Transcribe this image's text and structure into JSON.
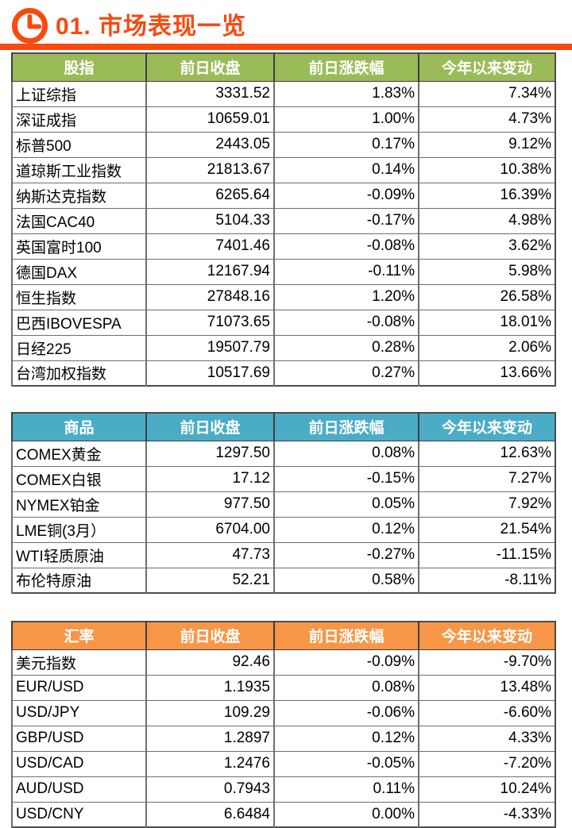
{
  "page": {
    "title": "01. 市场表现一览"
  },
  "icons": {
    "title_icon": "clock-icon"
  },
  "colors": {
    "accent_orange": "#F8490E",
    "header_green": "#9BBB59",
    "header_teal": "#4BACC6",
    "header_orange": "#F79646",
    "header_text": "#FFFFFF",
    "body_text": "#000000"
  },
  "tables": [
    {
      "id": "stock-indices",
      "header_color": "#9BBB59",
      "columns": [
        "股指",
        "前日收盘",
        "前日涨跌幅",
        "今年以来变动"
      ],
      "rows": [
        [
          "上证综指",
          "3331.52",
          "1.83%",
          "7.34%"
        ],
        [
          "深证成指",
          "10659.01",
          "1.00%",
          "4.73%"
        ],
        [
          "标普500",
          "2443.05",
          "0.17%",
          "9.12%"
        ],
        [
          "道琼斯工业指数",
          "21813.67",
          "0.14%",
          "10.38%"
        ],
        [
          "纳斯达克指数",
          "6265.64",
          "-0.09%",
          "16.39%"
        ],
        [
          "法国CAC40",
          "5104.33",
          "-0.17%",
          "4.98%"
        ],
        [
          "英国富时100",
          "7401.46",
          "-0.08%",
          "3.62%"
        ],
        [
          "德国DAX",
          "12167.94",
          "-0.11%",
          "5.98%"
        ],
        [
          "恒生指数",
          "27848.16",
          "1.20%",
          "26.58%"
        ],
        [
          "巴西IBOVESPA",
          "71073.65",
          "-0.08%",
          "18.01%"
        ],
        [
          "日经225",
          "19507.79",
          "0.28%",
          "2.06%"
        ],
        [
          "台湾加权指数",
          "10517.69",
          "0.27%",
          "13.66%"
        ]
      ]
    },
    {
      "id": "commodities",
      "header_color": "#4BACC6",
      "columns": [
        "商品",
        "前日收盘",
        "前日涨跌幅",
        "今年以来变动"
      ],
      "rows": [
        [
          "COMEX黄金",
          "1297.50",
          "0.08%",
          "12.63%"
        ],
        [
          "COMEX白银",
          "17.12",
          "-0.15%",
          "7.27%"
        ],
        [
          "NYMEX铂金",
          "977.50",
          "0.05%",
          "7.92%"
        ],
        [
          "LME铜(3月）",
          "6704.00",
          "0.12%",
          "21.54%"
        ],
        [
          "WTI轻质原油",
          "47.73",
          "-0.27%",
          "-11.15%"
        ],
        [
          "布伦特原油",
          "52.21",
          "0.58%",
          "-8.11%"
        ]
      ]
    },
    {
      "id": "fx-rates",
      "header_color": "#F79646",
      "columns": [
        "汇率",
        "前日收盘",
        "前日涨跌幅",
        "今年以来变动"
      ],
      "rows": [
        [
          "美元指数",
          "92.46",
          "-0.09%",
          "-9.70%"
        ],
        [
          "EUR/USD",
          "1.1935",
          "0.08%",
          "13.48%"
        ],
        [
          "USD/JPY",
          "109.29",
          "-0.06%",
          "-6.60%"
        ],
        [
          "GBP/USD",
          "1.2897",
          "0.12%",
          "4.33%"
        ],
        [
          "USD/CAD",
          "1.2476",
          "-0.05%",
          "-7.20%"
        ],
        [
          "AUD/USD",
          "0.7943",
          "0.11%",
          "10.24%"
        ],
        [
          "USD/CNY",
          "6.6484",
          "0.00%",
          "-4.33%"
        ]
      ]
    }
  ]
}
